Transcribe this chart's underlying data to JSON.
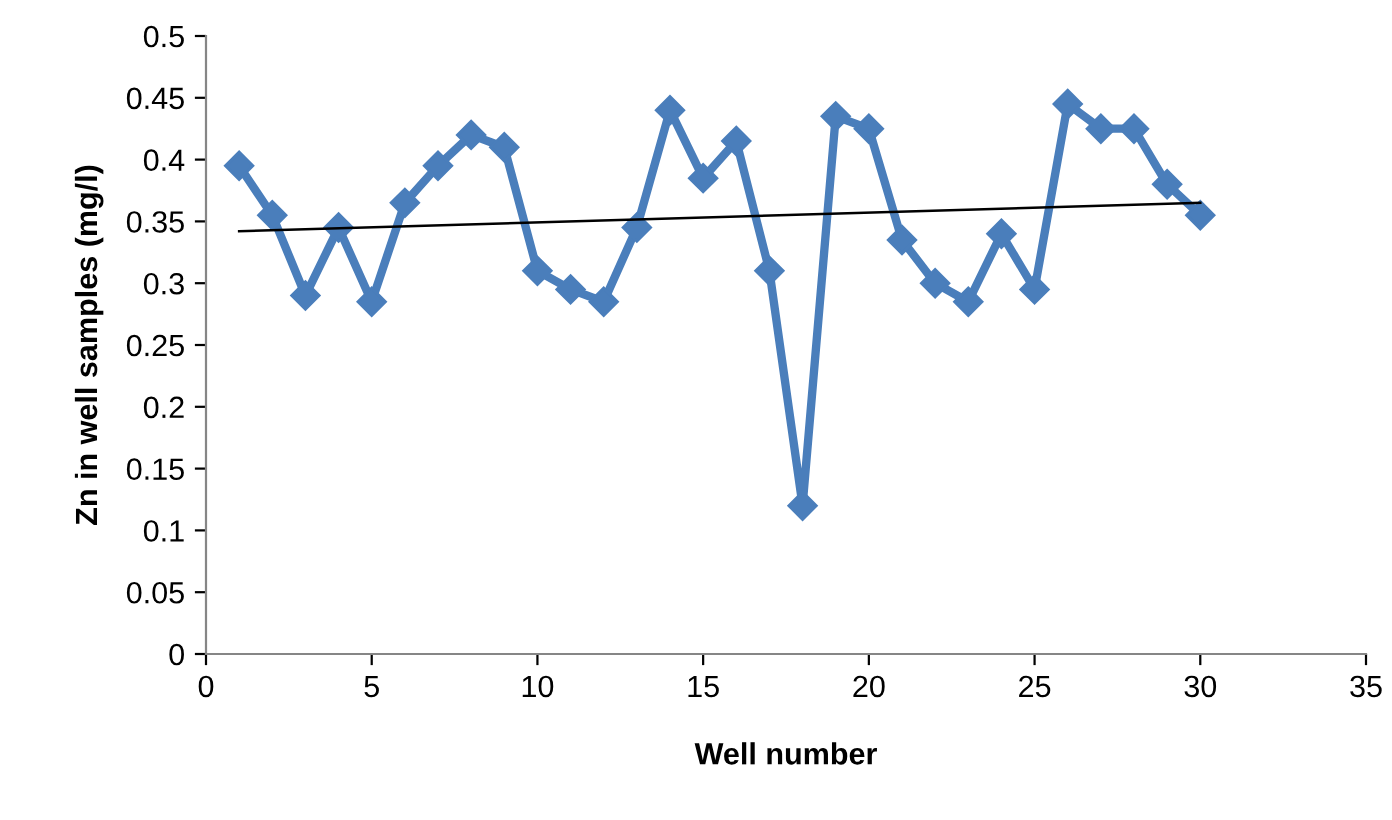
{
  "chart_data": {
    "type": "line",
    "xlabel": "Well number",
    "ylabel": "Zn in well samples (mg/l)",
    "xlim": [
      0,
      35
    ],
    "xticks": [
      0,
      5,
      10,
      15,
      20,
      25,
      30,
      35
    ],
    "ylim": [
      0,
      0.5
    ],
    "yticks": [
      0,
      0.05,
      0.1,
      0.15,
      0.2,
      0.25,
      0.3,
      0.35,
      0.4,
      0.45,
      0.5
    ],
    "grid": false,
    "legend": false,
    "series": [
      {
        "color": "#4a7ebb",
        "marker": "diamond",
        "line_style": "solid",
        "x": [
          1,
          2,
          3,
          4,
          5,
          6,
          7,
          8,
          9,
          10,
          11,
          12,
          13,
          14,
          15,
          16,
          17,
          18,
          19,
          20,
          21,
          22,
          23,
          24,
          25,
          26,
          27,
          28,
          29,
          30
        ],
        "values": [
          0.395,
          0.355,
          0.29,
          0.345,
          0.285,
          0.365,
          0.395,
          0.42,
          0.41,
          0.31,
          0.295,
          0.285,
          0.345,
          0.44,
          0.385,
          0.415,
          0.31,
          0.12,
          0.435,
          0.425,
          0.335,
          0.3,
          0.285,
          0.34,
          0.295,
          0.445,
          0.425,
          0.425,
          0.38,
          0.355
        ]
      },
      {
        "type": "line",
        "color": "#000000",
        "marker": "none",
        "line_style": "solid",
        "x": [
          1,
          30
        ],
        "values": [
          0.342,
          0.365
        ]
      }
    ]
  }
}
